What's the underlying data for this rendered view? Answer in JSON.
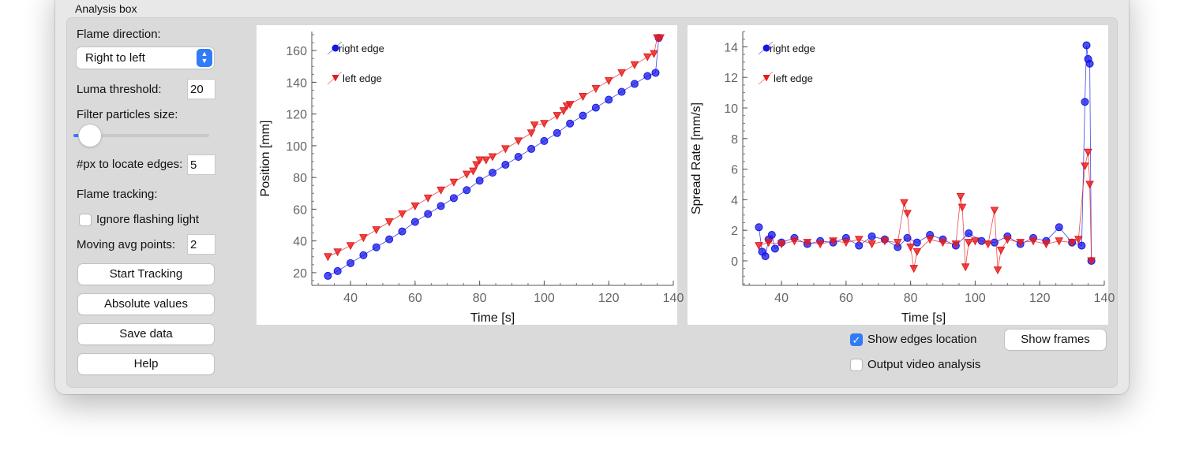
{
  "panel": {
    "title": "Analysis box"
  },
  "controls": {
    "flame_direction_label": "Flame direction:",
    "flame_direction_value": "Right to left",
    "luma_label": "Luma threshold:",
    "luma_value": "20",
    "filter_label": "Filter particles size:",
    "filter_slider_fraction": 0.05,
    "px_label": "#px to locate edges:",
    "px_value": "5",
    "tracking_label": "Flame tracking:",
    "ignore_label": "Ignore flashing light",
    "ignore_checked": false,
    "avg_label": "Moving avg points:",
    "avg_value": "2"
  },
  "buttons": {
    "start": "Start Tracking",
    "absolute": "Absolute values",
    "save": "Save data",
    "help": "Help",
    "show_frames": "Show frames"
  },
  "options": {
    "show_edges_label": "Show edges location",
    "show_edges_checked": true,
    "output_video_label": "Output video analysis",
    "output_video_checked": false
  },
  "colors": {
    "right_edge": "#1515e6",
    "left_edge": "#e61b1b",
    "accent": "#2f7cf6"
  },
  "chart_data": [
    {
      "type": "scatter",
      "xlabel": "Time [s]",
      "ylabel": "Position [mm]",
      "xlim": [
        28,
        140
      ],
      "ylim": [
        12,
        172
      ],
      "xticks": [
        40,
        60,
        80,
        100,
        120,
        140
      ],
      "yticks": [
        20,
        40,
        60,
        80,
        100,
        120,
        140,
        160
      ],
      "legend": {
        "placement": "top-left",
        "entries": [
          "right edge",
          "left edge"
        ]
      },
      "series": [
        {
          "name": "right edge",
          "marker": "circle",
          "color": "#1515e6",
          "x": [
            33,
            36,
            40,
            44,
            48,
            52,
            56,
            60,
            64,
            68,
            72,
            76,
            80,
            84,
            88,
            92,
            96,
            100,
            104,
            108,
            112,
            116,
            120,
            124,
            128,
            132,
            134.5,
            135.5
          ],
          "y": [
            18,
            21,
            26,
            31,
            36,
            41,
            46,
            52,
            57,
            62,
            67,
            72,
            78,
            83,
            88,
            93,
            98,
            103,
            108,
            114,
            119,
            124,
            129,
            134,
            139,
            144,
            146,
            168
          ]
        },
        {
          "name": "left edge",
          "marker": "triangle",
          "color": "#e61b1b",
          "x": [
            33,
            36,
            40,
            44,
            48,
            52,
            56,
            60,
            64,
            68,
            72,
            76,
            78,
            79,
            80,
            82,
            84,
            88,
            92,
            96,
            97,
            100,
            104,
            106,
            107,
            108,
            112,
            116,
            120,
            124,
            128,
            132,
            134,
            135,
            136
          ],
          "y": [
            30,
            33,
            37,
            42,
            47,
            52,
            57,
            62,
            67,
            72,
            77,
            82,
            84,
            88,
            91,
            91,
            93,
            98,
            103,
            108,
            113,
            114,
            119,
            122,
            125,
            126,
            131,
            136,
            141,
            146,
            151,
            156,
            158,
            168,
            168
          ]
        }
      ]
    },
    {
      "type": "scatter",
      "xlabel": "Time [s]",
      "ylabel": "Spread Rate [mm/s]",
      "xlim": [
        28,
        140
      ],
      "ylim": [
        -1.6,
        15
      ],
      "xticks": [
        40,
        60,
        80,
        100,
        120,
        140
      ],
      "yticks": [
        0,
        2,
        4,
        6,
        8,
        10,
        12,
        14
      ],
      "legend": {
        "placement": "top-left",
        "entries": [
          "right edge",
          "left edge"
        ]
      },
      "series": [
        {
          "name": "right edge",
          "marker": "circle",
          "color": "#1515e6",
          "x": [
            33,
            34,
            35,
            36,
            37,
            38,
            40,
            44,
            48,
            52,
            56,
            60,
            64,
            68,
            72,
            76,
            79,
            82,
            86,
            90,
            94,
            98,
            102,
            106,
            110,
            114,
            118,
            122,
            126,
            130,
            133,
            134,
            134.5,
            135,
            135.5,
            136
          ],
          "y": [
            2.2,
            0.6,
            0.3,
            1.4,
            1.7,
            0.8,
            1.2,
            1.5,
            1.1,
            1.3,
            1.2,
            1.5,
            1.0,
            1.6,
            1.4,
            0.9,
            1.5,
            1.2,
            1.7,
            1.4,
            1.0,
            1.8,
            1.3,
            1.2,
            1.6,
            1.1,
            1.5,
            1.3,
            2.2,
            1.2,
            1.0,
            10.4,
            14.1,
            13.2,
            12.9,
            0.0
          ]
        },
        {
          "name": "left edge",
          "marker": "triangle",
          "color": "#e61b1b",
          "x": [
            33,
            36,
            40,
            44,
            48,
            52,
            56,
            60,
            64,
            68,
            72,
            76,
            78,
            79,
            80,
            81,
            82,
            86,
            90,
            94,
            95.5,
            96,
            97,
            98,
            100,
            104,
            106,
            107,
            108,
            110,
            114,
            118,
            122,
            126,
            130,
            132,
            134,
            135,
            135.5,
            136
          ],
          "y": [
            1.0,
            1.2,
            1.1,
            1.3,
            1.2,
            1.1,
            1.3,
            1.2,
            1.4,
            1.1,
            1.3,
            1.2,
            3.8,
            3.1,
            0.9,
            -0.5,
            0.6,
            1.4,
            1.2,
            1.1,
            4.2,
            3.5,
            -0.4,
            1.2,
            1.3,
            1.1,
            3.3,
            -0.6,
            0.7,
            1.4,
            1.2,
            1.3,
            1.1,
            1.3,
            1.2,
            1.4,
            6.2,
            7.1,
            5.0,
            0.0
          ]
        }
      ]
    }
  ]
}
